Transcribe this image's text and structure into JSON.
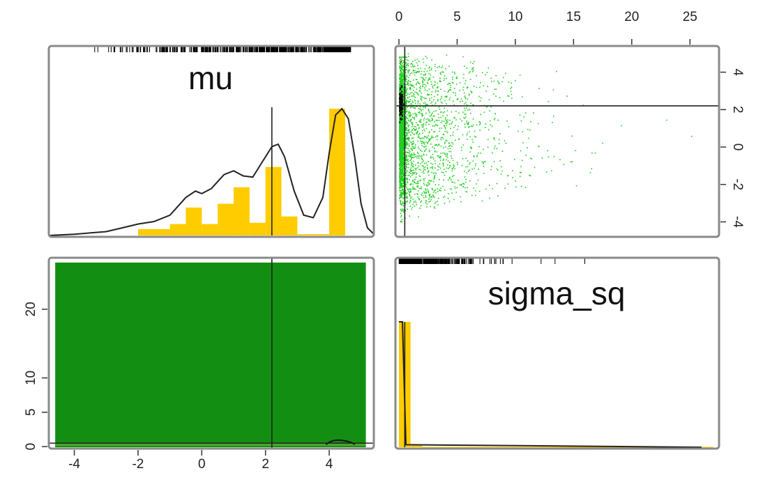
{
  "chart_data": {
    "type": "pairs",
    "variables": [
      "mu",
      "sigma_sq"
    ],
    "colors": {
      "hist": "#ffcc00",
      "points": "#1fce1f",
      "density_fill": "#128f12",
      "line": "#222222",
      "point_red": "#e02020"
    },
    "mu_axis": {
      "ticks": [
        -4,
        -2,
        0,
        2,
        4
      ],
      "range": [
        -4.8,
        5.4
      ]
    },
    "sigma_axis": {
      "ticks": [
        0,
        5,
        10,
        15,
        20,
        25
      ],
      "range": [
        -0.3,
        27.5
      ]
    },
    "sigma_axis_left": {
      "ticks": [
        0,
        5,
        10,
        20
      ],
      "range": [
        -0.3,
        27.5
      ]
    },
    "mu_axis_right": {
      "ticks": [
        -4,
        -2,
        0,
        2,
        4
      ],
      "range": [
        -4.8,
        5.4
      ]
    },
    "mu_marginal": {
      "hist_bins": [
        {
          "x0": -2.0,
          "x1": -1.0,
          "h": 0.05
        },
        {
          "x0": -1.0,
          "x1": -0.5,
          "h": 0.09
        },
        {
          "x0": -0.5,
          "x1": 0.0,
          "h": 0.22
        },
        {
          "x0": 0.0,
          "x1": 0.5,
          "h": 0.09
        },
        {
          "x0": 0.5,
          "x1": 1.0,
          "h": 0.25
        },
        {
          "x0": 1.0,
          "x1": 1.5,
          "h": 0.38
        },
        {
          "x0": 1.5,
          "x1": 2.0,
          "h": 0.1
        },
        {
          "x0": 2.0,
          "x1": 2.5,
          "h": 0.54
        },
        {
          "x0": 2.5,
          "x1": 3.0,
          "h": 0.15
        },
        {
          "x0": 3.0,
          "x1": 4.0,
          "h": 0.01
        },
        {
          "x0": 4.0,
          "x1": 4.5,
          "h": 1.0
        }
      ],
      "density_x": [
        -4.8,
        -4.0,
        -3.0,
        -2.5,
        -2.0,
        -1.5,
        -1.0,
        -0.5,
        -0.2,
        0.0,
        0.3,
        0.7,
        1.0,
        1.3,
        1.6,
        1.9,
        2.2,
        2.4,
        2.6,
        2.9,
        3.2,
        3.5,
        3.8,
        4.0,
        4.2,
        4.4,
        4.6,
        4.8,
        5.0,
        5.2,
        5.4
      ],
      "density_y": [
        0.0,
        0.01,
        0.03,
        0.06,
        0.09,
        0.11,
        0.16,
        0.3,
        0.35,
        0.33,
        0.37,
        0.48,
        0.51,
        0.47,
        0.46,
        0.58,
        0.7,
        0.72,
        0.62,
        0.35,
        0.16,
        0.14,
        0.3,
        0.65,
        0.95,
        1.0,
        0.92,
        0.62,
        0.25,
        0.06,
        0.01
      ],
      "vline_x": 2.2
    },
    "sigma_marginal": {
      "hist_bins": [
        {
          "x0": 0.0,
          "x1": 1.0,
          "h": 1.0
        },
        {
          "x0": 1.0,
          "x1": 2.0,
          "h": 0.02
        },
        {
          "x0": 2.0,
          "x1": 27.0,
          "h": 0.003
        }
      ],
      "vline_x": 0.5
    },
    "scatter": {
      "reference_mu": 2.2,
      "reference_sigma": 0.5,
      "red_point": {
        "sigma": 0.1,
        "mu": 4.6
      }
    },
    "text_labels": {
      "mu": "mu",
      "sigma": "sigma_sq"
    }
  }
}
